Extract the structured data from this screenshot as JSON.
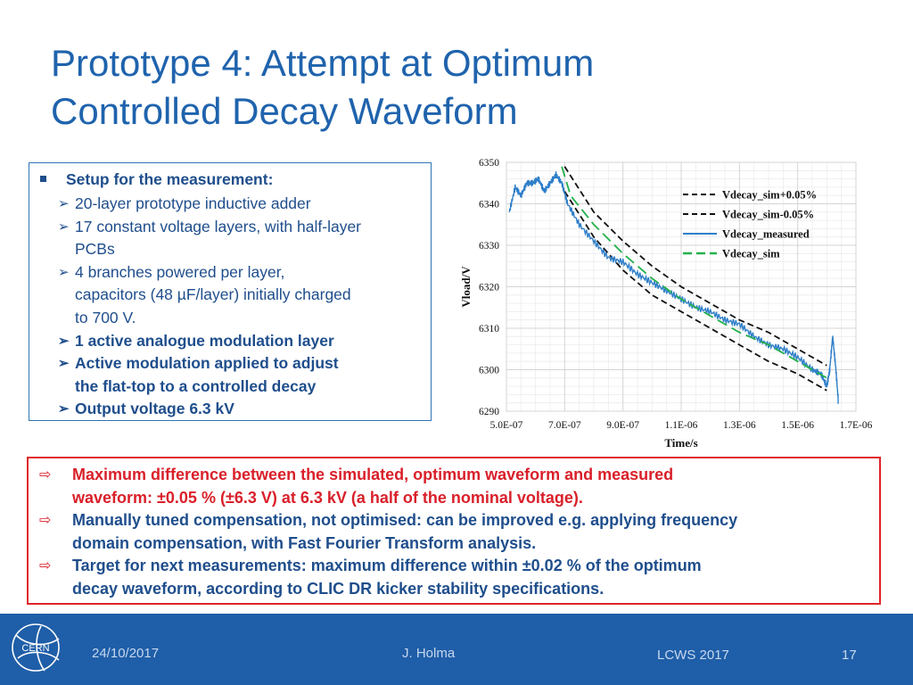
{
  "slide": {
    "title_line1": "Prototype 4: Attempt at Optimum",
    "title_line2": "Controlled Decay Waveform"
  },
  "setup": {
    "heading": "Setup for the measurement:",
    "items": [
      {
        "lines": [
          "20-layer prototype inductive adder"
        ],
        "bold": false
      },
      {
        "lines": [
          "17 constant voltage layers, with half-layer",
          "PCBs"
        ],
        "bold": false
      },
      {
        "lines": [
          "4 branches powered  per layer,",
          "capacitors (48 µF/layer) initially charged",
          "to 700 V."
        ],
        "bold": false
      },
      {
        "lines": [
          "1 active analogue modulation layer"
        ],
        "bold": true
      },
      {
        "lines": [
          "Active modulation applied to adjust",
          "the flat-top to a controlled decay"
        ],
        "bold": true
      },
      {
        "lines": [
          "Output voltage 6.3 kV"
        ],
        "bold": true
      }
    ]
  },
  "summary": {
    "items": [
      {
        "lines": [
          "Maximum difference between the simulated, optimum waveform and measured",
          "waveform: ±0.05 % (±6.3 V) at 6.3 kV (a half of the nominal voltage)."
        ],
        "color": "#d9202a"
      },
      {
        "lines": [
          "Manually tuned compensation, not optimised: can be improved e.g. applying frequency",
          "domain compensation, with Fast Fourier Transform analysis."
        ],
        "color": "#1f4e8c"
      },
      {
        "lines": [
          "Target for next measurements: maximum difference within ±0.02 % of the optimum",
          "decay waveform, according to CLIC DR kicker stability specifications."
        ],
        "color": "#1f4e8c"
      }
    ]
  },
  "footer": {
    "logo_text": "CERN",
    "date": "24/10/2017",
    "author": "J. Holma",
    "event": "LCWS 2017",
    "page": "17"
  },
  "colors": {
    "title": "#1f63ad",
    "footer_bg": "#1f5ea8",
    "measured": "#2f7fc9",
    "sim": "#22b14c",
    "bounds": "#111111"
  },
  "chart_data": {
    "type": "line",
    "title": "",
    "xlabel": "Time/s",
    "ylabel": "Vload/V",
    "xlim": [
      5e-07,
      1.7e-06
    ],
    "ylim": [
      6290,
      6350
    ],
    "xticks": [
      5e-07,
      7e-07,
      9e-07,
      1.1e-06,
      1.3e-06,
      1.5e-06,
      1.7e-06
    ],
    "xtick_labels": [
      "5.0E-07",
      "7.0E-07",
      "9.0E-07",
      "1.1E-06",
      "1.3E-06",
      "1.5E-06",
      "1.7E-06"
    ],
    "yticks": [
      6290,
      6300,
      6310,
      6320,
      6330,
      6340,
      6350
    ],
    "ytick_labels": [
      "6290",
      "6300",
      "6310",
      "6320",
      "6330",
      "6340",
      "6350"
    ],
    "grid": true,
    "legend_position": "top-right",
    "series": [
      {
        "name": "Vdecay_sim+0.05%",
        "style": "dashed",
        "color": "#111111",
        "x": [
          7e-07,
          8e-07,
          9e-07,
          1e-06,
          1.1e-06,
          1.2e-06,
          1.3e-06,
          1.4e-06,
          1.5e-06,
          1.6e-06
        ],
        "y": [
          6349,
          6338,
          6331,
          6325,
          6320,
          6316,
          6312,
          6309,
          6305,
          6301
        ]
      },
      {
        "name": "Vdecay_sim-0.05%",
        "style": "dashed",
        "color": "#111111",
        "x": [
          7e-07,
          8e-07,
          9e-07,
          1e-06,
          1.1e-06,
          1.2e-06,
          1.3e-06,
          1.4e-06,
          1.5e-06,
          1.6e-06
        ],
        "y": [
          6343,
          6332,
          6324,
          6318,
          6314,
          6310,
          6306,
          6302,
          6299,
          6295
        ]
      },
      {
        "name": "Vdecay_measured",
        "style": "solid",
        "color": "#2f7fc9",
        "x": [
          5.1e-07,
          5.3e-07,
          5.5e-07,
          5.7e-07,
          5.9e-07,
          6.1e-07,
          6.3e-07,
          6.5e-07,
          6.7e-07,
          6.9e-07,
          7.1e-07,
          7.5e-07,
          8e-07,
          8.5e-07,
          9e-07,
          9.5e-07,
          1e-06,
          1.05e-06,
          1.1e-06,
          1.15e-06,
          1.2e-06,
          1.25e-06,
          1.3e-06,
          1.35e-06,
          1.4e-06,
          1.45e-06,
          1.5e-06,
          1.55e-06,
          1.58e-06,
          1.6e-06,
          1.61e-06,
          1.62e-06,
          1.63e-06,
          1.64e-06
        ],
        "y": [
          6338,
          6344,
          6342,
          6345,
          6345,
          6346,
          6343,
          6345,
          6347,
          6345,
          6340,
          6335,
          6331,
          6327,
          6326,
          6323,
          6321,
          6319,
          6317,
          6315,
          6314,
          6312,
          6311,
          6308,
          6306,
          6305,
          6303,
          6300,
          6299,
          6296,
          6300,
          6308,
          6301,
          6292
        ]
      },
      {
        "name": "Vdecay_sim",
        "style": "dashed",
        "color": "#22b14c",
        "x": [
          6.9e-07,
          7.2e-07,
          8e-07,
          9e-07,
          1e-06,
          1.1e-06,
          1.2e-06,
          1.3e-06,
          1.4e-06,
          1.5e-06,
          1.6e-06
        ],
        "y": [
          6349,
          6342,
          6335,
          6328,
          6322,
          6317,
          6313,
          6309,
          6306,
          6302,
          6298
        ]
      }
    ]
  }
}
